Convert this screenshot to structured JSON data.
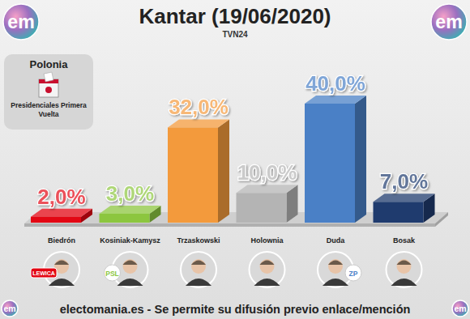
{
  "chart_data": {
    "type": "bar",
    "title": "Kantar (19/06/2020)",
    "subtitle": "TVN24",
    "categories": [
      "Biedrón",
      "Kosiniak-Kamysz",
      "Trzaskowski",
      "Holownia",
      "Duda",
      "Bosak"
    ],
    "values": [
      2,
      3,
      32,
      10,
      40,
      7
    ],
    "value_labels": [
      "2,0%",
      "3,0%",
      "32,0%",
      "10,0%",
      "40,0%",
      "7,0%"
    ],
    "colors": [
      "#e30613",
      "#8cc63f",
      "#f39a3c",
      "#b4b4b4",
      "#4a80c6",
      "#1f3b6e"
    ],
    "ylim": [
      0,
      40
    ],
    "data_labels": true,
    "tick_labels": "x",
    "grid": false
  },
  "badge": {
    "title": "Polonia",
    "subtitle": "Presidenciales Primera Vuelta"
  },
  "logo": "em",
  "party_logos": [
    "LEWICA",
    "PSL",
    null,
    null,
    "ZP",
    null
  ],
  "footer": "electomania.es - Se permite su difusión previo enlace/mención"
}
